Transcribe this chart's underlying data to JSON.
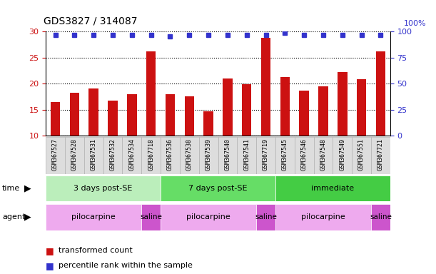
{
  "title": "GDS3827 / 314087",
  "samples": [
    "GSM367527",
    "GSM367528",
    "GSM367531",
    "GSM367532",
    "GSM367534",
    "GSM367718",
    "GSM367536",
    "GSM367538",
    "GSM367539",
    "GSM367540",
    "GSM367541",
    "GSM367719",
    "GSM367545",
    "GSM367546",
    "GSM367548",
    "GSM367549",
    "GSM367551",
    "GSM367721"
  ],
  "transformed_count": [
    16.5,
    18.2,
    19.0,
    16.7,
    17.9,
    26.2,
    17.9,
    17.6,
    14.7,
    21.0,
    19.9,
    28.8,
    21.2,
    18.6,
    19.5,
    22.2,
    20.8,
    26.2
  ],
  "percentile_rank": [
    97,
    97,
    97,
    97,
    97,
    97,
    95,
    97,
    97,
    97,
    97,
    97,
    99,
    97,
    97,
    97,
    97,
    97
  ],
  "bar_color": "#cc1111",
  "dot_color": "#3333cc",
  "ylim_left": [
    10,
    30
  ],
  "ylim_right": [
    0,
    100
  ],
  "yticks_left": [
    10,
    15,
    20,
    25,
    30
  ],
  "yticks_right": [
    0,
    25,
    50,
    75,
    100
  ],
  "time_groups": [
    {
      "label": "3 days post-SE",
      "start": 0,
      "end": 6,
      "color": "#bbeebb"
    },
    {
      "label": "7 days post-SE",
      "start": 6,
      "end": 12,
      "color": "#66dd66"
    },
    {
      "label": "immediate",
      "start": 12,
      "end": 18,
      "color": "#44cc44"
    }
  ],
  "agent_groups": [
    {
      "label": "pilocarpine",
      "start": 0,
      "end": 5,
      "color": "#eeaaee"
    },
    {
      "label": "saline",
      "start": 5,
      "end": 6,
      "color": "#cc55cc"
    },
    {
      "label": "pilocarpine",
      "start": 6,
      "end": 11,
      "color": "#eeaaee"
    },
    {
      "label": "saline",
      "start": 11,
      "end": 12,
      "color": "#cc55cc"
    },
    {
      "label": "pilocarpine",
      "start": 12,
      "end": 17,
      "color": "#eeaaee"
    },
    {
      "label": "saline",
      "start": 17,
      "end": 18,
      "color": "#cc55cc"
    }
  ],
  "legend_items": [
    {
      "label": "transformed count",
      "color": "#cc1111"
    },
    {
      "label": "percentile rank within the sample",
      "color": "#3333cc"
    }
  ],
  "tick_label_color_left": "#cc1111",
  "tick_label_color_right": "#3333cc",
  "bar_bottom": 10,
  "sample_box_color": "#dddddd",
  "sample_box_edge": "#aaaaaa"
}
